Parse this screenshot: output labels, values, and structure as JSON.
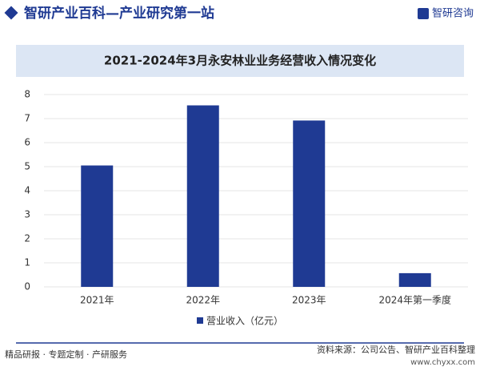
{
  "header": {
    "title": "智研产业百科—产业研究第一站",
    "logo": "智研咨询"
  },
  "chart_data": {
    "type": "bar",
    "title": "2021-2024年3月永安林业业务经营收入情况变化",
    "categories": [
      "2021年",
      "2022年",
      "2023年",
      "2024年第一季度"
    ],
    "series": [
      {
        "name": "营业收入（亿元）",
        "color": "#1f3a93",
        "values": [
          5.05,
          7.55,
          6.92,
          0.57
        ]
      }
    ],
    "ylim": [
      0,
      8
    ],
    "yticks": [
      0,
      1,
      2,
      3,
      4,
      5,
      6,
      7,
      8
    ],
    "grid": true,
    "legend": "bottom"
  },
  "footer": {
    "left": "精品研报 · 专题定制 · 产研服务",
    "source": "资料来源：公司公告、智研产业百科整理",
    "url": "www.chyxx.com"
  }
}
